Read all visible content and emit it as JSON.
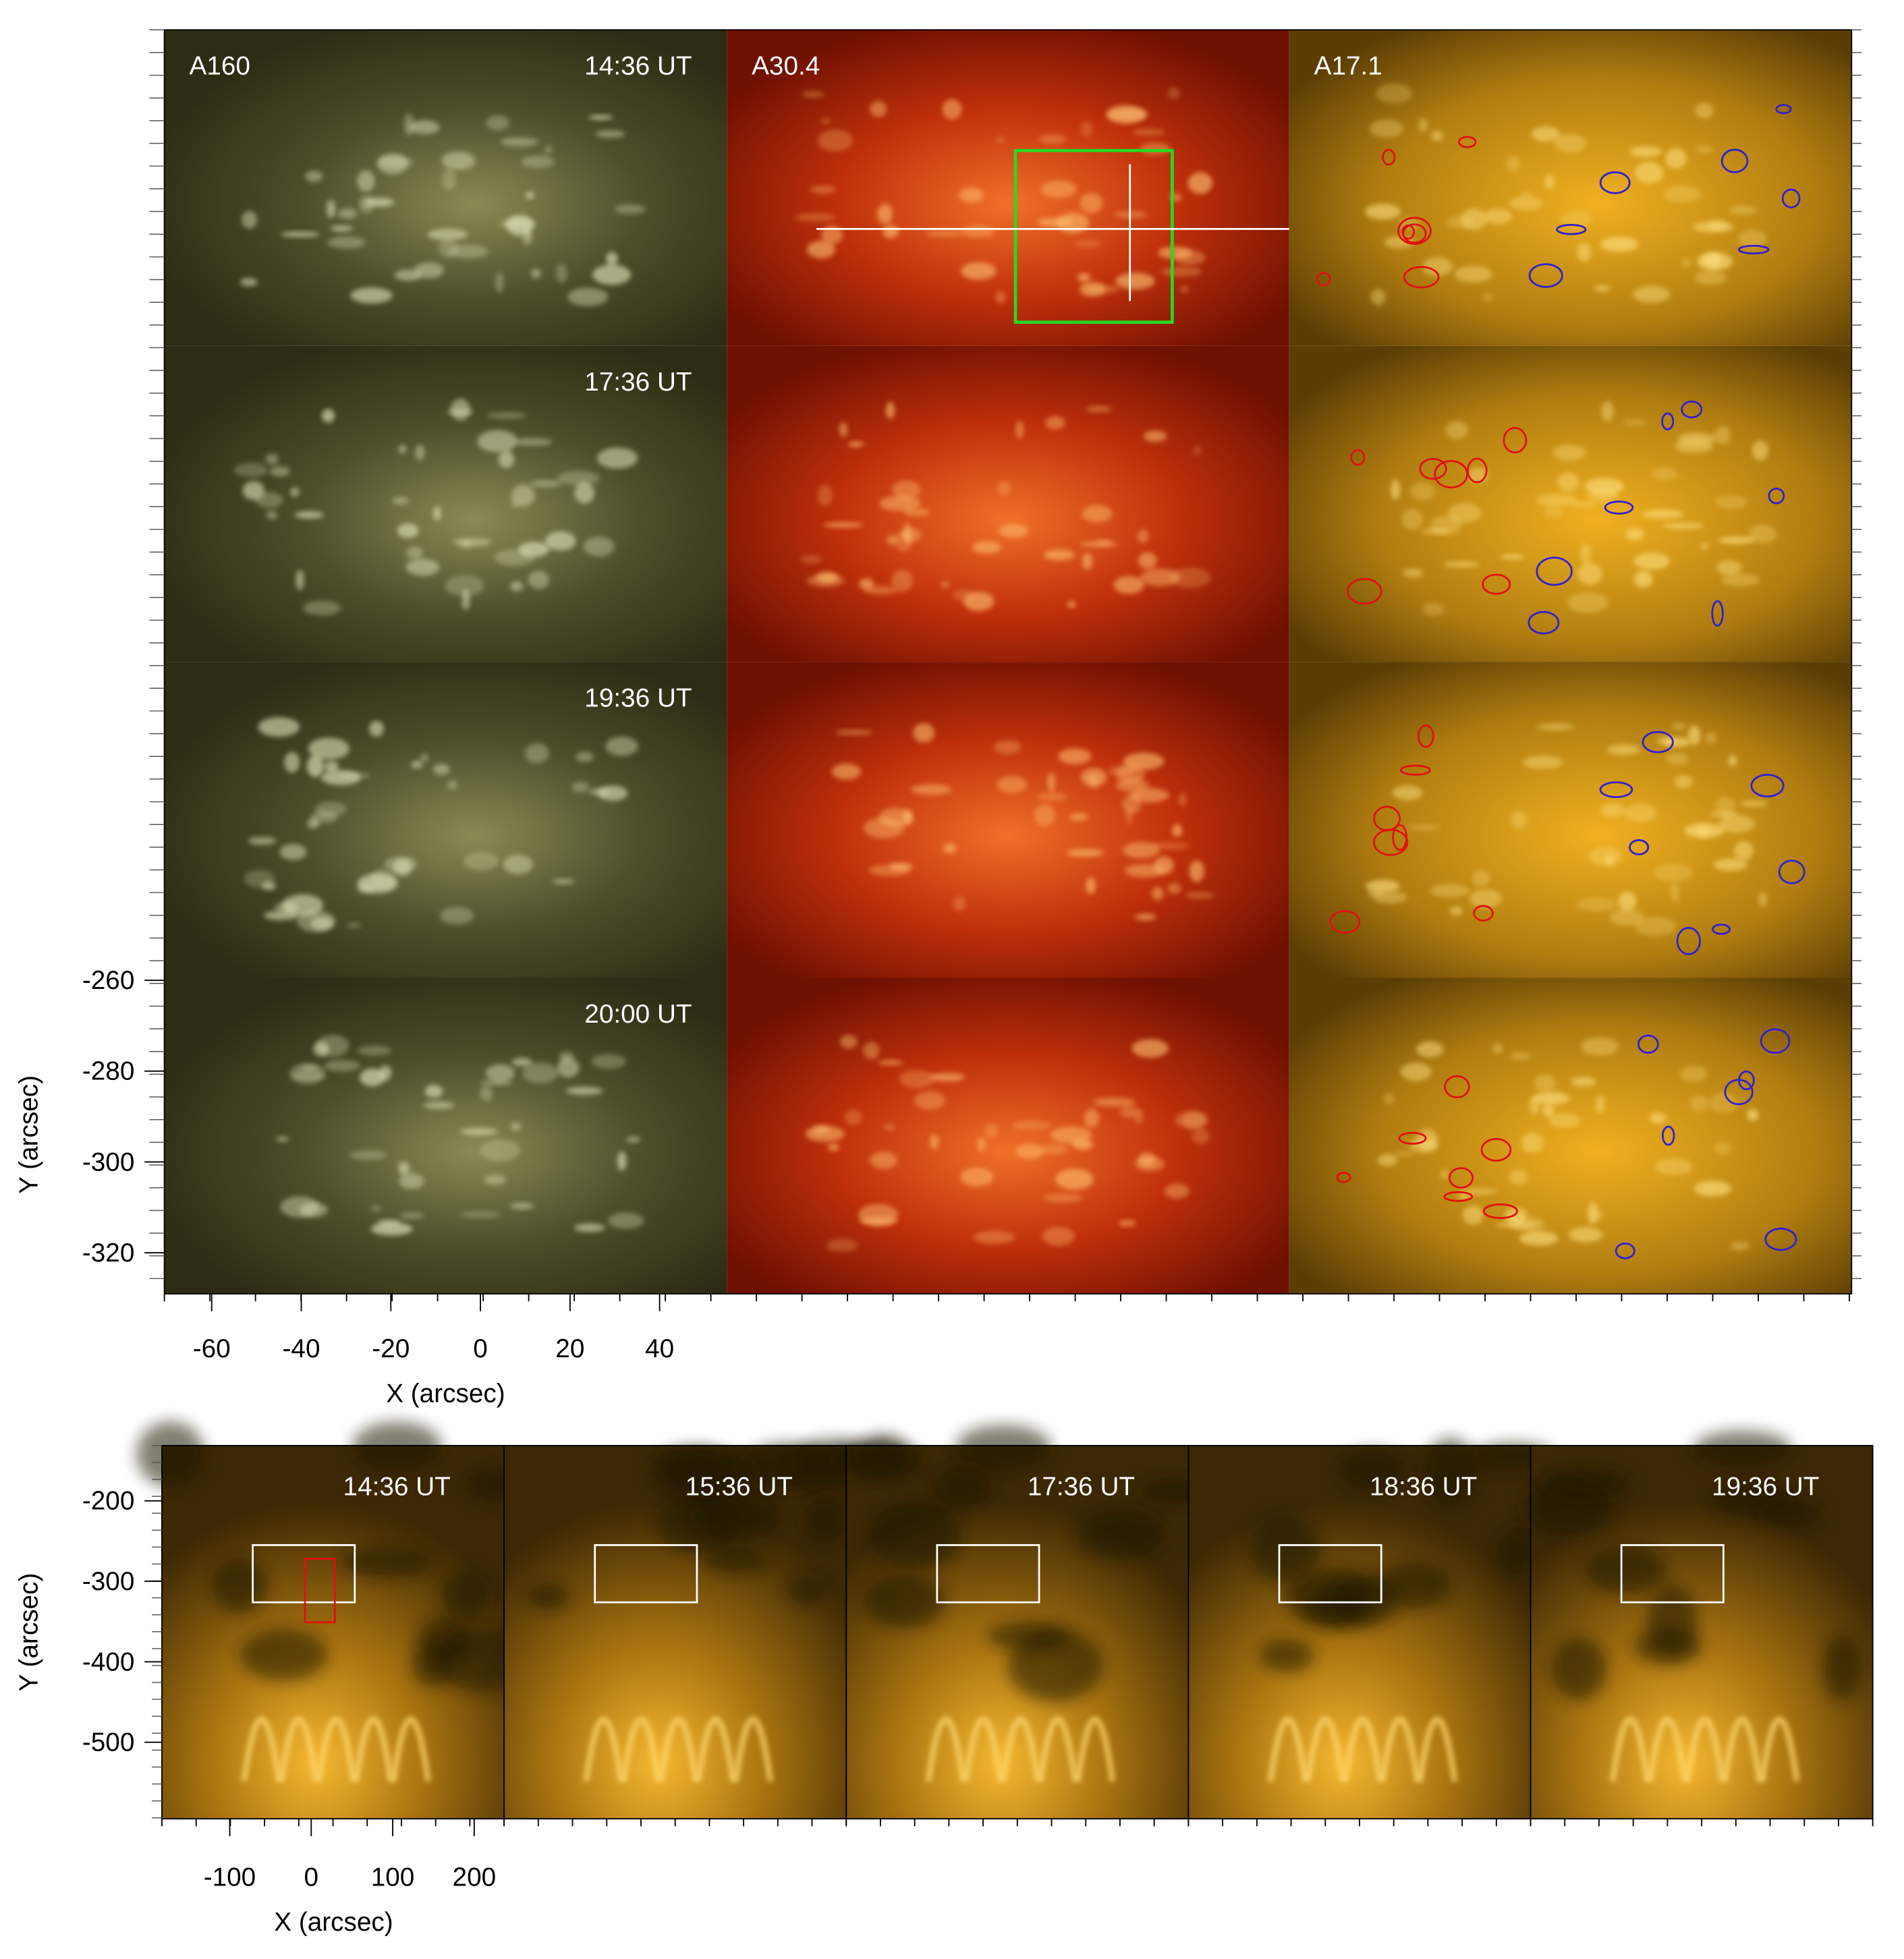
{
  "top": {
    "column_labels": [
      "A160",
      "A30.4",
      "A17.1"
    ],
    "row_times": [
      "14:36 UT",
      "17:36 UT",
      "19:36 UT",
      "20:00 UT"
    ],
    "y_axis": {
      "label": "Y (arcsec)",
      "ticks": [
        -260,
        -280,
        -300,
        -320
      ]
    },
    "x_axis": {
      "label": "X (arcsec)",
      "ticks": [
        -60,
        -40,
        -20,
        0,
        20,
        40
      ]
    }
  },
  "bottom": {
    "panel_times": [
      "14:36 UT",
      "15:36 UT",
      "17:36 UT",
      "18:36 UT",
      "19:36 UT"
    ],
    "y_axis": {
      "label": "Y (arcsec)",
      "ticks": [
        -200,
        -300,
        -400,
        -500
      ]
    },
    "x_axis": {
      "label": "X (arcsec)",
      "ticks": [
        -100,
        0,
        100,
        200
      ]
    }
  }
}
